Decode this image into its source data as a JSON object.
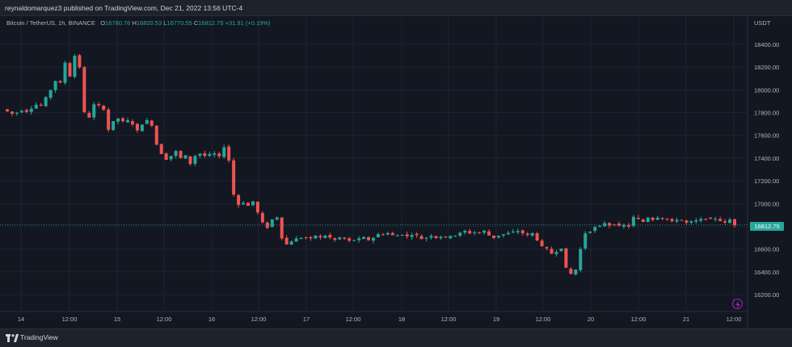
{
  "header": {
    "publish_line": "reynaldomarquez3 published on TradingView.com, Dec 21, 2022 13:56 UTC-4"
  },
  "legend": {
    "symbol": "Bitcoin / TetherUS, 1h, BINANCE",
    "o_label": "O",
    "o_value": "16780.76",
    "h_label": "H",
    "h_value": "16820.53",
    "l_label": "L",
    "l_value": "16770.55",
    "c_label": "C",
    "c_value": "16812.75",
    "change": "+31.91 (+0.19%)"
  },
  "price_axis": {
    "currency": "USDT",
    "current_price": "16812.75"
  },
  "footer": {
    "brand": "TradingView"
  },
  "colors": {
    "background": "#131722",
    "up": "#26a69a",
    "down": "#ef5350",
    "grid": "#1f2330",
    "axis_text": "#b2b5be"
  },
  "icons": {
    "flash": "lightning-icon",
    "logo": "tradingview-logo-icon"
  },
  "chart_data": {
    "type": "candlestick",
    "title": "Bitcoin / TetherUS, 1h, BINANCE",
    "xlabel": "",
    "ylabel": "",
    "ylim": [
      16100,
      18600
    ],
    "y_ticks": [
      "18400.00",
      "18200.00",
      "18000.00",
      "17800.00",
      "17600.00",
      "17400.00",
      "17200.00",
      "17000.00",
      "16800.00",
      "16600.00",
      "16400.00",
      "16200.00"
    ],
    "x_ticks": [
      "14",
      "12:00",
      "15",
      "12:00",
      "16",
      "12:00",
      "17",
      "12:00",
      "18",
      "12:00",
      "19",
      "12:00",
      "20",
      "12:00",
      "21",
      "12:00"
    ],
    "last_price": 16812.75,
    "close_path": [
      [
        0,
        17830
      ],
      [
        6,
        17810
      ],
      [
        12,
        17790
      ],
      [
        18,
        17800
      ],
      [
        24,
        17820
      ],
      [
        30,
        17810
      ],
      [
        36,
        17840
      ],
      [
        42,
        17870
      ],
      [
        48,
        17860
      ],
      [
        54,
        17930
      ],
      [
        60,
        18000
      ],
      [
        66,
        18080
      ],
      [
        72,
        18060
      ],
      [
        78,
        18240
      ],
      [
        84,
        18120
      ],
      [
        90,
        18300
      ],
      [
        96,
        18200
      ],
      [
        102,
        17800
      ],
      [
        108,
        17760
      ],
      [
        114,
        17870
      ],
      [
        120,
        17860
      ],
      [
        126,
        17830
      ],
      [
        132,
        17650
      ],
      [
        138,
        17720
      ],
      [
        144,
        17750
      ],
      [
        150,
        17720
      ],
      [
        156,
        17730
      ],
      [
        162,
        17700
      ],
      [
        168,
        17640
      ],
      [
        174,
        17700
      ],
      [
        180,
        17730
      ],
      [
        186,
        17690
      ],
      [
        192,
        17520
      ],
      [
        198,
        17440
      ],
      [
        204,
        17390
      ],
      [
        210,
        17420
      ],
      [
        216,
        17460
      ],
      [
        222,
        17400
      ],
      [
        228,
        17420
      ],
      [
        234,
        17350
      ],
      [
        240,
        17420
      ],
      [
        246,
        17440
      ],
      [
        252,
        17420
      ],
      [
        258,
        17430
      ],
      [
        264,
        17440
      ],
      [
        270,
        17410
      ],
      [
        276,
        17500
      ],
      [
        282,
        17380
      ],
      [
        288,
        17080
      ],
      [
        294,
        16990
      ],
      [
        300,
        17010
      ],
      [
        306,
        16980
      ],
      [
        312,
        17020
      ],
      [
        318,
        16920
      ],
      [
        324,
        16830
      ],
      [
        330,
        16790
      ],
      [
        336,
        16860
      ],
      [
        342,
        16880
      ],
      [
        348,
        16700
      ],
      [
        354,
        16640
      ],
      [
        360,
        16670
      ],
      [
        366,
        16690
      ],
      [
        372,
        16700
      ],
      [
        378,
        16700
      ],
      [
        384,
        16690
      ],
      [
        390,
        16720
      ],
      [
        396,
        16700
      ],
      [
        402,
        16720
      ],
      [
        408,
        16700
      ],
      [
        414,
        16680
      ],
      [
        420,
        16700
      ],
      [
        426,
        16690
      ],
      [
        432,
        16670
      ],
      [
        438,
        16680
      ],
      [
        444,
        16690
      ],
      [
        450,
        16700
      ],
      [
        456,
        16680
      ],
      [
        462,
        16700
      ],
      [
        468,
        16730
      ],
      [
        474,
        16730
      ],
      [
        480,
        16740
      ],
      [
        486,
        16720
      ],
      [
        492,
        16720
      ],
      [
        498,
        16730
      ],
      [
        504,
        16710
      ],
      [
        510,
        16730
      ],
      [
        516,
        16720
      ],
      [
        522,
        16690
      ],
      [
        528,
        16700
      ],
      [
        534,
        16720
      ],
      [
        540,
        16700
      ],
      [
        546,
        16710
      ],
      [
        552,
        16700
      ],
      [
        558,
        16720
      ],
      [
        564,
        16720
      ],
      [
        570,
        16740
      ],
      [
        576,
        16760
      ],
      [
        582,
        16740
      ],
      [
        588,
        16750
      ],
      [
        594,
        16740
      ],
      [
        600,
        16760
      ],
      [
        606,
        16720
      ],
      [
        612,
        16700
      ],
      [
        618,
        16720
      ],
      [
        624,
        16730
      ],
      [
        630,
        16740
      ],
      [
        636,
        16750
      ],
      [
        642,
        16760
      ],
      [
        648,
        16740
      ],
      [
        654,
        16720
      ],
      [
        660,
        16740
      ],
      [
        666,
        16680
      ],
      [
        672,
        16620
      ],
      [
        678,
        16600
      ],
      [
        684,
        16560
      ],
      [
        690,
        16580
      ],
      [
        696,
        16610
      ],
      [
        702,
        16430
      ],
      [
        708,
        16380
      ],
      [
        714,
        16420
      ],
      [
        720,
        16600
      ],
      [
        726,
        16740
      ],
      [
        732,
        16760
      ],
      [
        738,
        16790
      ],
      [
        744,
        16800
      ],
      [
        750,
        16830
      ],
      [
        756,
        16810
      ],
      [
        762,
        16820
      ],
      [
        768,
        16800
      ],
      [
        774,
        16810
      ],
      [
        780,
        16800
      ],
      [
        786,
        16880
      ],
      [
        792,
        16860
      ],
      [
        798,
        16840
      ],
      [
        804,
        16880
      ],
      [
        810,
        16860
      ],
      [
        816,
        16880
      ],
      [
        822,
        16870
      ],
      [
        828,
        16860
      ],
      [
        834,
        16840
      ],
      [
        840,
        16860
      ],
      [
        846,
        16850
      ],
      [
        852,
        16830
      ],
      [
        858,
        16840
      ],
      [
        864,
        16850
      ],
      [
        870,
        16860
      ],
      [
        876,
        16870
      ],
      [
        882,
        16860
      ],
      [
        888,
        16870
      ],
      [
        894,
        16850
      ],
      [
        900,
        16830
      ],
      [
        906,
        16860
      ],
      [
        912,
        16812.75
      ]
    ]
  }
}
